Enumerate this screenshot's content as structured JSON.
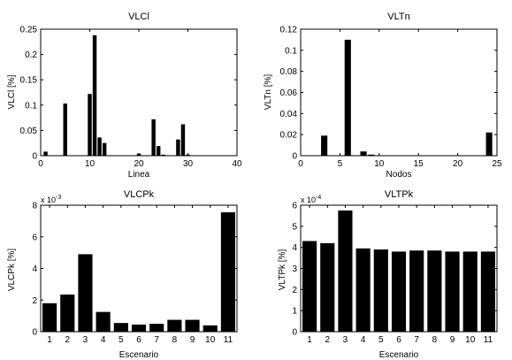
{
  "colors": {
    "bar": "#000000",
    "axis": "#000000",
    "background": "#ffffff"
  },
  "chart_data": [
    {
      "id": "vlcl",
      "type": "bar",
      "title": "VLCl",
      "xlabel": "Linea",
      "ylabel": "VLCl [%]",
      "xlim": [
        0,
        40
      ],
      "ylim": [
        0,
        0.25
      ],
      "xticks": [
        "0",
        "10",
        "20",
        "30",
        "40"
      ],
      "yticks": [
        "0",
        "0.05",
        "0.1",
        "0.15",
        "0.2",
        "0.25"
      ],
      "bar_width": 0.8,
      "x": [
        1,
        5,
        10,
        11,
        12,
        13,
        20,
        23,
        24,
        25,
        26,
        28,
        29,
        30
      ],
      "values": [
        0.008,
        0.103,
        0.122,
        0.238,
        0.036,
        0.025,
        0.004,
        0.072,
        0.019,
        0.002,
        0.001,
        0.032,
        0.062,
        0.002
      ]
    },
    {
      "id": "vltn",
      "type": "bar",
      "title": "VLTn",
      "xlabel": "Nodos",
      "ylabel": "VLTn [%]",
      "xlim": [
        0,
        25
      ],
      "ylim": [
        0,
        0.12
      ],
      "xticks": [
        "0",
        "5",
        "10",
        "15",
        "20",
        "25"
      ],
      "yticks": [
        "0",
        "0.02",
        "0.04",
        "0.06",
        "0.08",
        "0.1",
        "0.12"
      ],
      "bar_width": 0.8,
      "x": [
        3,
        6,
        8,
        9,
        24
      ],
      "values": [
        0.019,
        0.11,
        0.004,
        0.001,
        0.022
      ]
    },
    {
      "id": "vlcpk",
      "type": "bar",
      "title": "VLCPk",
      "xlabel": "Escenario",
      "ylabel": "VLCPk [%]",
      "exponent": "x 10",
      "exponent_power": "-3",
      "xlim": [
        0.5,
        11.5
      ],
      "ylim": [
        0,
        8
      ],
      "categories": [
        "1",
        "2",
        "3",
        "4",
        "5",
        "6",
        "7",
        "8",
        "9",
        "10",
        "11"
      ],
      "yticks": [
        "0",
        "2",
        "4",
        "6",
        "8"
      ],
      "bar_width": 0.8,
      "values": [
        1.8,
        2.35,
        4.9,
        1.25,
        0.55,
        0.45,
        0.5,
        0.75,
        0.75,
        0.4,
        7.55
      ]
    },
    {
      "id": "vltpk",
      "type": "bar",
      "title": "VLTPk",
      "xlabel": "Escenario",
      "ylabel": "VLTPk [%]",
      "exponent": "x 10",
      "exponent_power": "-4",
      "xlim": [
        0.5,
        11.5
      ],
      "ylim": [
        0,
        6
      ],
      "categories": [
        "1",
        "2",
        "3",
        "4",
        "5",
        "6",
        "7",
        "8",
        "9",
        "10",
        "11"
      ],
      "yticks": [
        "0",
        "1",
        "2",
        "3",
        "4",
        "5",
        "6"
      ],
      "bar_width": 0.8,
      "values": [
        4.3,
        4.2,
        5.75,
        3.95,
        3.9,
        3.8,
        3.85,
        3.85,
        3.8,
        3.8,
        3.8
      ]
    }
  ]
}
